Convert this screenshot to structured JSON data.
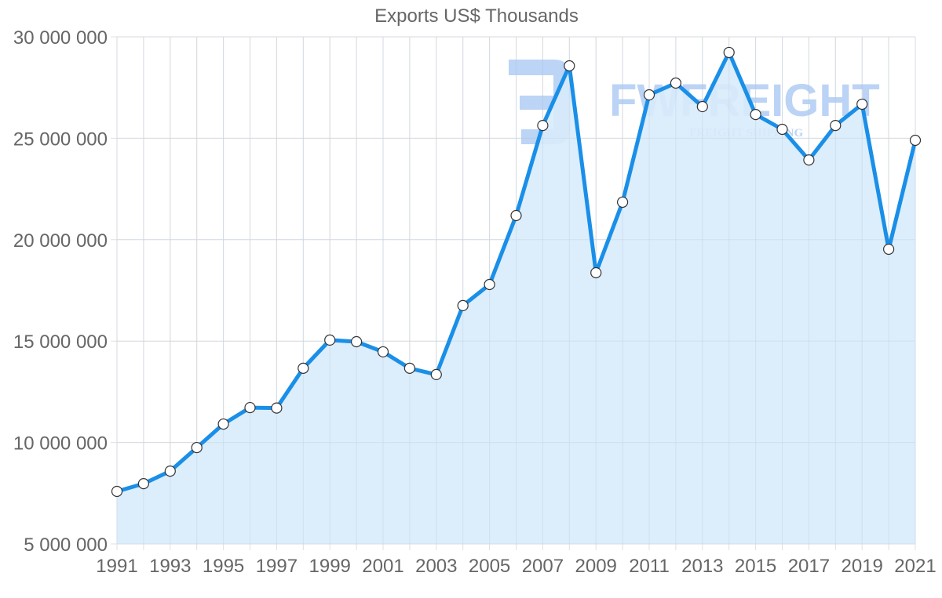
{
  "chart_data": {
    "type": "line",
    "title": "Exports US$ Thousands",
    "xlabel": "",
    "ylabel": "",
    "x": [
      1991,
      1992,
      1993,
      1994,
      1995,
      1996,
      1997,
      1998,
      1999,
      2000,
      2001,
      2002,
      2003,
      2004,
      2005,
      2006,
      2007,
      2008,
      2009,
      2010,
      2011,
      2012,
      2013,
      2014,
      2015,
      2016,
      2017,
      2018,
      2019,
      2020,
      2021
    ],
    "series": [
      {
        "name": "Exports US$ Thousands",
        "values": [
          7590000,
          7970000,
          8590000,
          9750000,
          10910000,
          11720000,
          11700000,
          13660000,
          15050000,
          14970000,
          14470000,
          13660000,
          13350000,
          16750000,
          17790000,
          21190000,
          25630000,
          28570000,
          18370000,
          21850000,
          27140000,
          27720000,
          26560000,
          29230000,
          26170000,
          25440000,
          23930000,
          25630000,
          26680000,
          19530000,
          24900000
        ]
      }
    ],
    "ylim": [
      5000000,
      30000000
    ],
    "xlim": [
      1991,
      2021
    ],
    "y_ticks": [
      "5 000 000",
      "10 000 000",
      "15 000 000",
      "20 000 000",
      "25 000 000",
      "30 000 000"
    ],
    "x_ticks": [
      "1991",
      "1993",
      "1995",
      "1997",
      "1999",
      "2001",
      "2003",
      "2005",
      "2007",
      "2009",
      "2011",
      "2013",
      "2015",
      "2017",
      "2019",
      "2021"
    ],
    "grid": true,
    "legend": "none",
    "area_fill": true,
    "colors": {
      "line": "#1a8fe8",
      "fill": "#d8ebfc",
      "grid": "#e0e0e0",
      "text": "#666666",
      "marker_fill": "#ffffff",
      "marker_stroke": "#333333"
    }
  },
  "watermark": {
    "brand": "FWFREIGHT",
    "tagline": "FREIGHT SHIPPING"
  }
}
